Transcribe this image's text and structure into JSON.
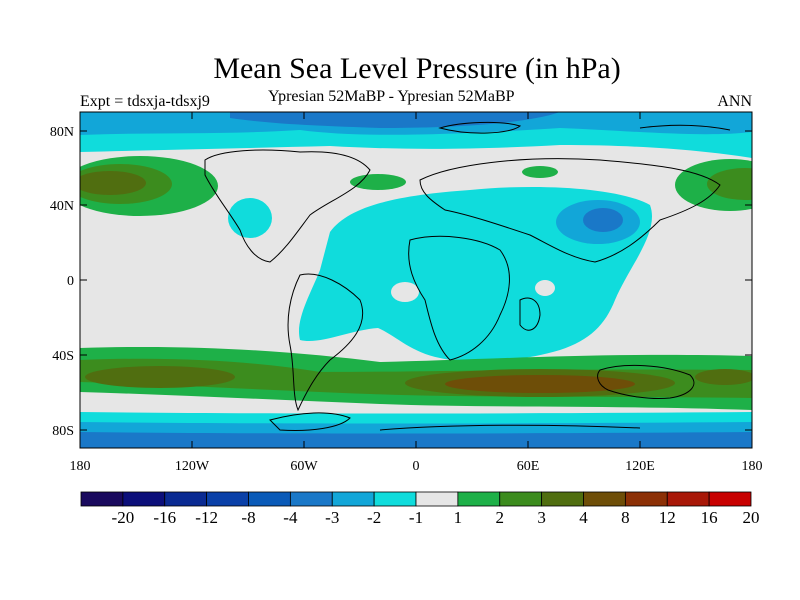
{
  "title": "Mean Sea Level Pressure (in hPa)",
  "experiment": "Expt = tdsxja-tdsxj9",
  "comparison": "Ypresian  52MaBP - Ypresian  52MaBP",
  "period": "ANN",
  "lat_labels": [
    "80N",
    "40N",
    "0",
    "40S",
    "80S"
  ],
  "lon_labels": [
    "180",
    "120W",
    "60W",
    "0",
    "60E",
    "120E",
    "180"
  ],
  "colorbar": {
    "labels": [
      "-20",
      "-16",
      "-12",
      "-8",
      "-4",
      "-3",
      "-2",
      "-1",
      "1",
      "2",
      "3",
      "4",
      "8",
      "12",
      "16",
      "20"
    ],
    "colors": [
      "#1a0a5e",
      "#0c0f7a",
      "#0a2a92",
      "#0a40a8",
      "#0a5ab8",
      "#1a78c8",
      "#12a6d8",
      "#10dcdc",
      "#e6e6e6",
      "#1eb048",
      "#3c8c1e",
      "#506e10",
      "#6e4e08",
      "#8c3006",
      "#a81808",
      "#c80000"
    ]
  }
}
